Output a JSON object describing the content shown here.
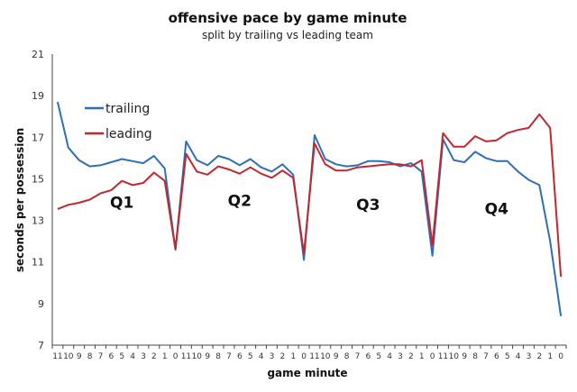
{
  "chart_data": {
    "type": "line",
    "title": "offensive pace by game minute",
    "subtitle": "split by trailing vs leading team",
    "xlabel": "game minute",
    "ylabel": "seconds per possession",
    "ylim": [
      7,
      21
    ],
    "yticks": [
      7,
      9,
      11,
      13,
      15,
      17,
      19,
      21
    ],
    "grid": false,
    "legend_position": "top-left",
    "categories": [
      "11",
      "10",
      "9",
      "8",
      "7",
      "6",
      "5",
      "4",
      "3",
      "2",
      "1",
      "0",
      "11",
      "10",
      "9",
      "8",
      "7",
      "6",
      "5",
      "4",
      "3",
      "2",
      "1",
      "0",
      "11",
      "10",
      "9",
      "8",
      "7",
      "6",
      "5",
      "4",
      "3",
      "2",
      "1",
      "0",
      "11",
      "10",
      "9",
      "8",
      "7",
      "6",
      "5",
      "4",
      "3",
      "2",
      "1",
      "0"
    ],
    "series": [
      {
        "name": "trailing",
        "color": "#2e6fb7",
        "values": [
          18.7,
          16.5,
          15.9,
          15.6,
          15.65,
          15.8,
          15.95,
          15.85,
          15.75,
          16.1,
          15.5,
          11.6,
          16.8,
          15.9,
          15.65,
          16.1,
          15.95,
          15.65,
          15.95,
          15.55,
          15.35,
          15.7,
          15.2,
          11.1,
          17.1,
          15.95,
          15.7,
          15.6,
          15.65,
          15.85,
          15.85,
          15.8,
          15.6,
          15.75,
          15.35,
          11.3,
          16.9,
          15.9,
          15.8,
          16.3,
          16.0,
          15.85,
          15.85,
          15.35,
          14.95,
          14.7,
          12.0,
          8.4
        ]
      },
      {
        "name": "leading",
        "color": "#c0282d",
        "values": [
          13.55,
          13.75,
          13.85,
          14.0,
          14.3,
          14.45,
          14.9,
          14.7,
          14.8,
          15.3,
          14.9,
          11.6,
          16.2,
          15.35,
          15.2,
          15.6,
          15.45,
          15.25,
          15.55,
          15.25,
          15.05,
          15.4,
          15.05,
          11.4,
          16.7,
          15.7,
          15.4,
          15.4,
          15.55,
          15.6,
          15.65,
          15.7,
          15.7,
          15.6,
          15.9,
          11.8,
          17.2,
          16.55,
          16.55,
          17.05,
          16.8,
          16.85,
          17.2,
          17.35,
          17.45,
          18.1,
          17.45,
          10.3
        ]
      }
    ],
    "annotations": [
      {
        "text": "Q1",
        "x_index": 6,
        "y": 13.6
      },
      {
        "text": "Q2",
        "x_index": 17,
        "y": 13.7
      },
      {
        "text": "Q3",
        "x_index": 29,
        "y": 13.5
      },
      {
        "text": "Q4",
        "x_index": 41,
        "y": 13.3
      }
    ]
  }
}
